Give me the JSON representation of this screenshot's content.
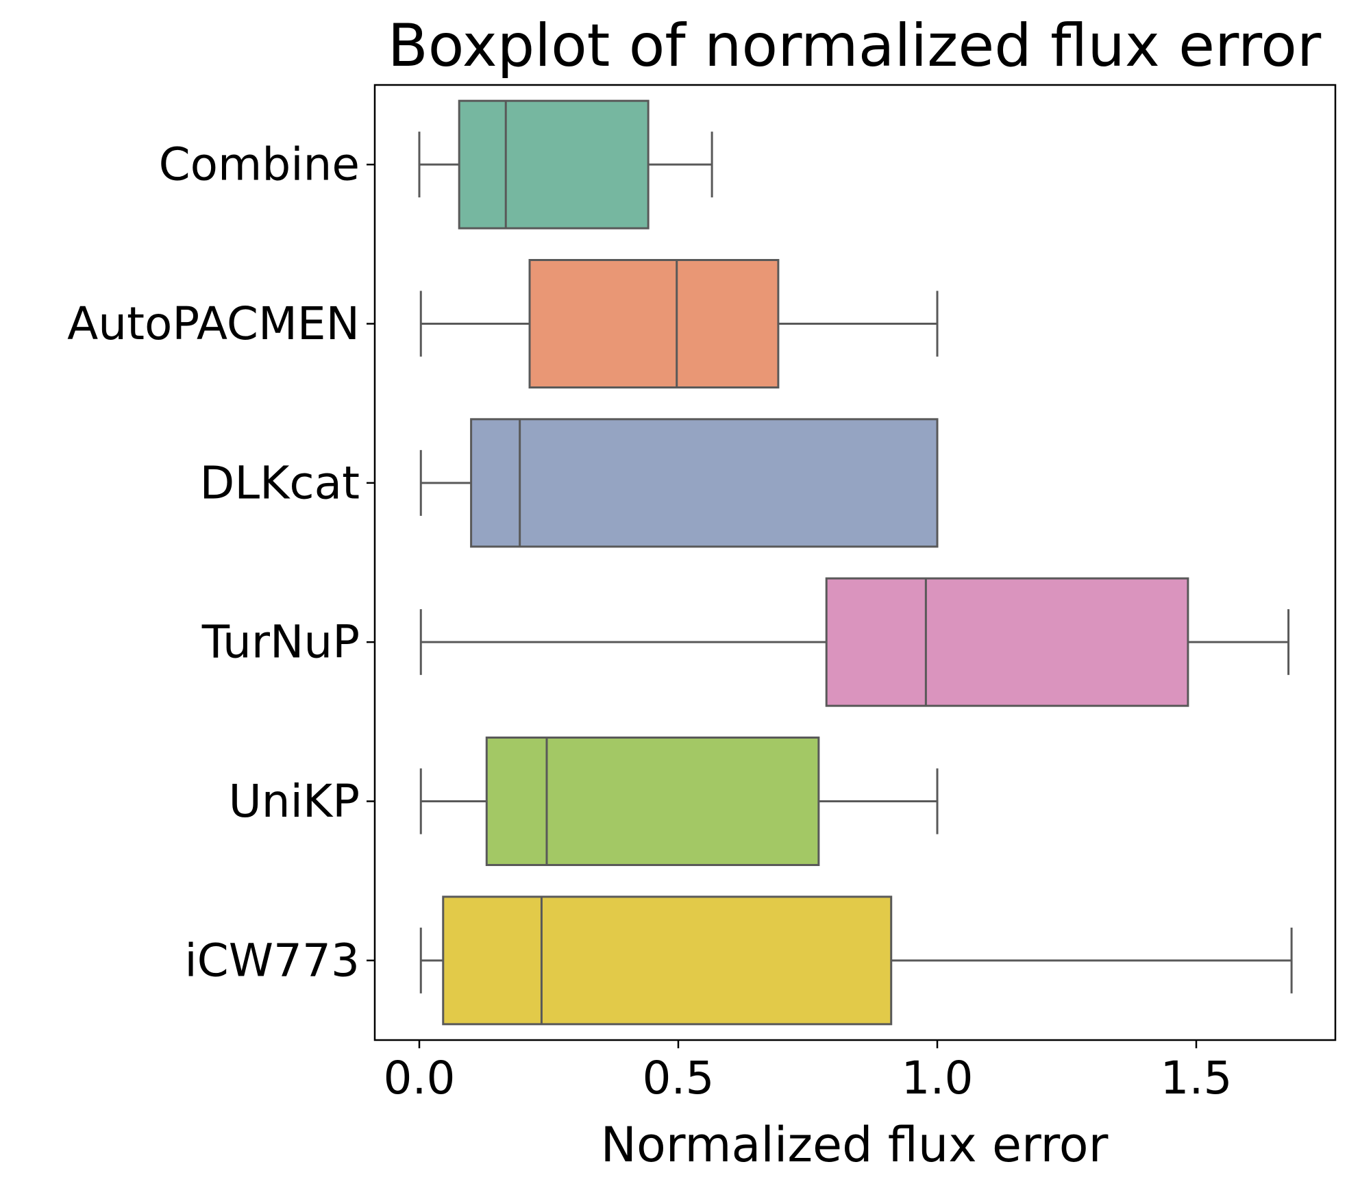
{
  "chart_data": {
    "type": "boxplot",
    "orientation": "horizontal",
    "title": "Boxplot of normalized flux error",
    "xlabel": "Normalized flux error",
    "ylabel": "",
    "xlim": [
      -0.087,
      1.77
    ],
    "xticks": [
      0.0,
      0.5,
      1.0,
      1.5
    ],
    "xtick_labels": [
      "0.0",
      "0.5",
      "1.0",
      "1.5"
    ],
    "grid": false,
    "categories": [
      "Combine",
      "AutoPACMEN",
      "DLKcat",
      "TurNuP",
      "UniKP",
      "iCW773"
    ],
    "series": [
      {
        "category": "Combine",
        "whisker_low": 0.0,
        "q1": 0.077,
        "median": 0.167,
        "q3": 0.442,
        "whisker_high": 0.565,
        "color": "#76b7a0"
      },
      {
        "category": "AutoPACMEN",
        "whisker_low": 0.003,
        "q1": 0.213,
        "median": 0.497,
        "q3": 0.693,
        "whisker_high": 1.0,
        "color": "#e99775"
      },
      {
        "category": "DLKcat",
        "whisker_low": 0.003,
        "q1": 0.1,
        "median": 0.194,
        "q3": 1.0,
        "whisker_high": 1.0,
        "color": "#95a4c2"
      },
      {
        "category": "TurNuP",
        "whisker_low": 0.003,
        "q1": 0.786,
        "median": 0.978,
        "q3": 1.484,
        "whisker_high": 1.678,
        "color": "#da94be"
      },
      {
        "category": "UniKP",
        "whisker_low": 0.003,
        "q1": 0.13,
        "median": 0.246,
        "q3": 0.771,
        "whisker_high": 1.0,
        "color": "#a3c865"
      },
      {
        "category": "iCW773",
        "whisker_low": 0.003,
        "q1": 0.046,
        "median": 0.236,
        "q3": 0.911,
        "whisker_high": 1.684,
        "color": "#e2ca49"
      }
    ],
    "line_color": "#595959"
  }
}
